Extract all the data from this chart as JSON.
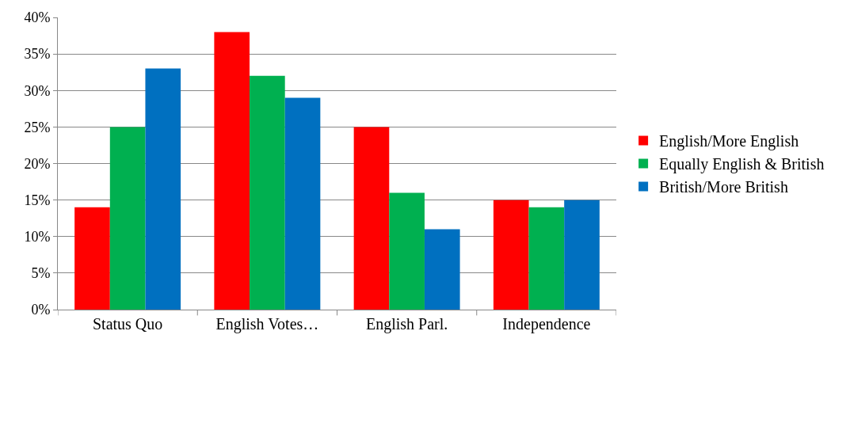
{
  "chart_data": {
    "type": "bar",
    "categories": [
      "Status Quo",
      "English Votes…",
      "English Parl.",
      "Independence"
    ],
    "series": [
      {
        "name": "English/More English",
        "color": "#ff0000",
        "values": [
          14,
          38,
          25,
          15
        ]
      },
      {
        "name": "Equally English & British",
        "color": "#00b050",
        "values": [
          25,
          32,
          16,
          14
        ]
      },
      {
        "name": "British/More British",
        "color": "#0070c0",
        "values": [
          33,
          29,
          11,
          15
        ]
      }
    ],
    "ylim": [
      0,
      40
    ],
    "yticks": [
      {
        "value": 0,
        "label": "0%"
      },
      {
        "value": 5,
        "label": "5%"
      },
      {
        "value": 10,
        "label": "10%"
      },
      {
        "value": 15,
        "label": "15%"
      },
      {
        "value": 20,
        "label": "20%"
      },
      {
        "value": 25,
        "label": "25%"
      },
      {
        "value": 30,
        "label": "30%"
      },
      {
        "value": 35,
        "label": "35%"
      },
      {
        "value": 40,
        "label": "40%"
      }
    ],
    "grid": "y",
    "legend": "right"
  }
}
